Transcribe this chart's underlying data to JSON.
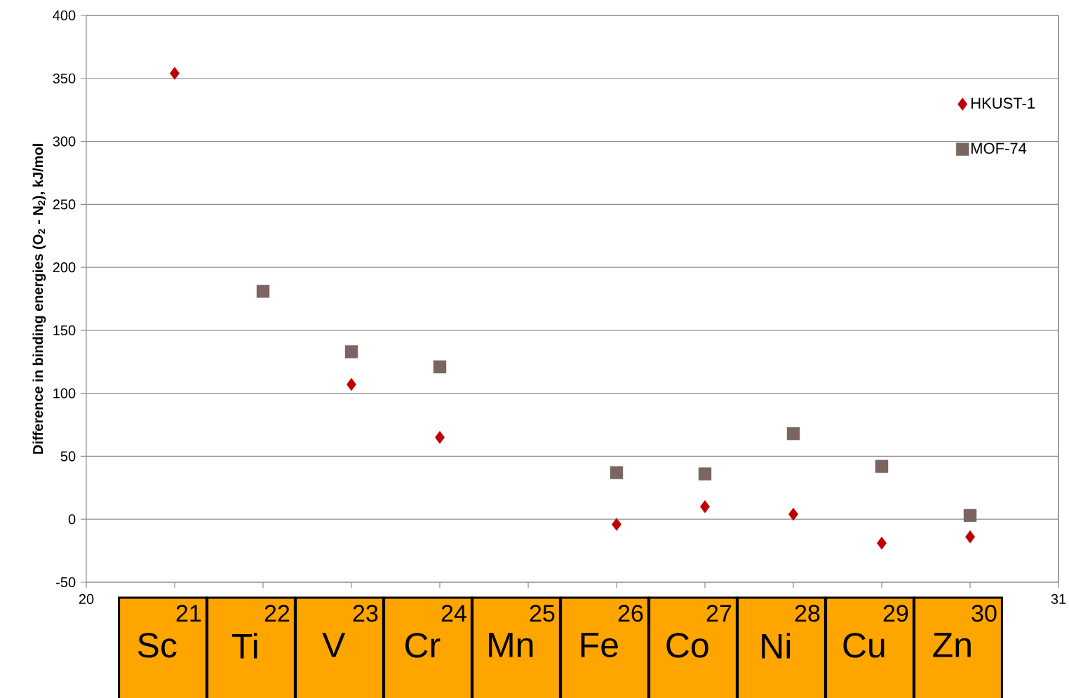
{
  "chart_data": {
    "type": "scatter",
    "ylabel": "Difference in binding energies (O$_{2}$ - N$_{2}$), kJ/mol",
    "series": [
      {
        "name": "HKUST-1",
        "color": "#c00000",
        "marker": "diamond",
        "x": [
          21,
          23,
          24,
          26,
          27,
          28,
          29,
          30
        ],
        "values": [
          354,
          107,
          65,
          -4,
          10,
          4,
          -19,
          -14
        ]
      },
      {
        "name": "MOF-74",
        "color": "#7a6560",
        "marker": "square",
        "x": [
          22,
          23,
          24,
          26,
          27,
          28,
          29,
          30
        ],
        "values": [
          181,
          133,
          121,
          37,
          36,
          68,
          42,
          3
        ]
      }
    ],
    "xlim": [
      20,
      31
    ],
    "xticks": [
      20,
      {
        "value": 21,
        "label": null
      },
      {
        "value": 22,
        "label": null
      },
      {
        "value": 23,
        "label": null
      },
      {
        "value": 24,
        "label": null
      },
      {
        "value": 25,
        "label": null
      },
      {
        "value": 26,
        "label": null
      },
      {
        "value": 27,
        "label": null
      },
      {
        "value": 28,
        "label": null
      },
      {
        "value": 29,
        "label": null
      },
      {
        "value": 30,
        "label": null
      },
      31
    ],
    "ylim": [
      -50,
      400
    ],
    "yticks": [
      -50,
      0,
      50,
      100,
      150,
      200,
      250,
      300,
      350,
      400
    ],
    "grid": "y",
    "legend": "top right",
    "annotations": [
      "21",
      "Sc",
      "22",
      "Ti",
      "23",
      "V",
      "24",
      "Cr",
      "25",
      "Mn",
      "26",
      "Fe",
      "27",
      "Co",
      "28",
      "Ni",
      "29",
      "Cu",
      "30",
      "Zn"
    ]
  }
}
